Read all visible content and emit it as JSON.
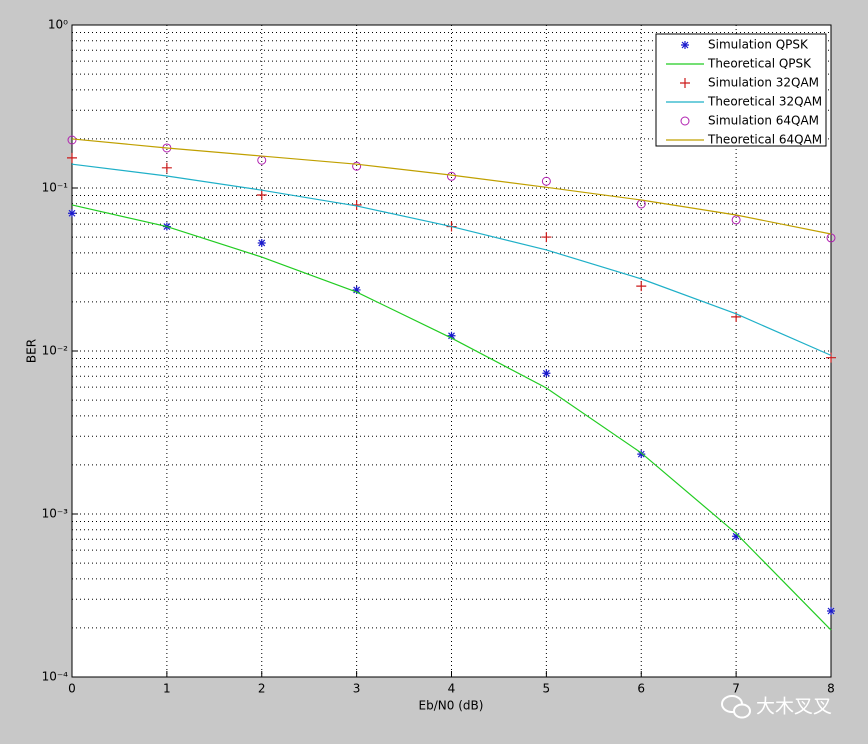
{
  "chart_data": {
    "type": "line",
    "x_label": "Eb/N0 (dB)",
    "y_label": "BER",
    "x": [
      0,
      1,
      2,
      3,
      4,
      5,
      6,
      7,
      8
    ],
    "xlim": [
      0,
      8
    ],
    "xticks": [
      0,
      1,
      2,
      3,
      4,
      5,
      6,
      7,
      8
    ],
    "ylim": [
      0.0001,
      1
    ],
    "log_y": true,
    "yticks": [
      {
        "value": 1,
        "label": "10⁰"
      },
      {
        "value": 0.1,
        "label": "10⁻¹"
      },
      {
        "value": 0.01,
        "label": "10⁻²"
      },
      {
        "value": 0.001,
        "label": "10⁻³"
      },
      {
        "value": 0.0001,
        "label": "10⁻⁴"
      }
    ],
    "grid": true,
    "minor_grid": true,
    "legend": "top-right",
    "series": [
      {
        "name": "Simulation QPSK",
        "color": "#1a1acc",
        "marker": "*",
        "values": [
          0.07,
          0.058,
          0.046,
          0.0237,
          0.0124,
          0.0073,
          0.00233,
          0.00073,
          0.000254
        ]
      },
      {
        "name": "Theoretical QPSK",
        "color": "#22cc22",
        "values": [
          0.0787,
          0.058,
          0.0377,
          0.023,
          0.012,
          0.00593,
          0.00237,
          0.00076,
          0.000194
        ]
      },
      {
        "name": "Simulation 32QAM",
        "color": "#cc1a1a",
        "marker": "+",
        "values": [
          0.153,
          0.133,
          0.0906,
          0.0787,
          0.058,
          0.05,
          0.025,
          0.0162,
          0.0091
        ]
      },
      {
        "name": "Theoretical 32QAM",
        "color": "#1fb0c8",
        "values": [
          0.14,
          0.1185,
          0.097,
          0.0776,
          0.058,
          0.0417,
          0.0277,
          0.0169,
          0.0094
        ]
      },
      {
        "name": "Simulation 64QAM",
        "color": "#b020b0",
        "marker": "o",
        "values": [
          0.197,
          0.176,
          0.148,
          0.136,
          0.118,
          0.11,
          0.0798,
          0.0637,
          0.0494
        ]
      },
      {
        "name": "Theoretical 64QAM",
        "color": "#c0a000",
        "values": [
          0.2,
          0.176,
          0.157,
          0.14,
          0.12,
          0.101,
          0.0844,
          0.0683,
          0.0522
        ]
      }
    ],
    "watermark": "大木叉叉"
  }
}
